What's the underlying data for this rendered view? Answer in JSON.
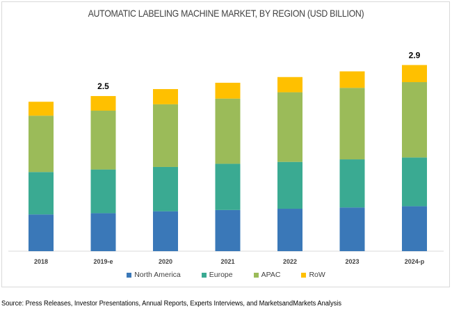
{
  "chart_data": {
    "type": "bar",
    "stacked": true,
    "title": "AUTOMATIC LABELING MACHINE MARKET, BY REGION (USD BILLION)",
    "xlabel": "",
    "ylabel": "",
    "ylim": [
      0,
      3.2
    ],
    "grid": false,
    "y_axis_visible": false,
    "legend_position": "bottom",
    "categories": [
      "2018",
      "2019-e",
      "2020",
      "2021",
      "2022",
      "2023",
      "2024-p"
    ],
    "series": [
      {
        "name": "North America",
        "color": "#3a78b8",
        "values": [
          0.58,
          0.6,
          0.63,
          0.65,
          0.67,
          0.69,
          0.71
        ]
      },
      {
        "name": "Europe",
        "color": "#3aaa92",
        "values": [
          0.67,
          0.69,
          0.7,
          0.73,
          0.74,
          0.76,
          0.77
        ]
      },
      {
        "name": "APAC",
        "color": "#9bbb59",
        "values": [
          0.89,
          0.93,
          0.99,
          1.03,
          1.1,
          1.13,
          1.19
        ]
      },
      {
        "name": "RoW",
        "color": "#ffc000",
        "values": [
          0.22,
          0.23,
          0.24,
          0.25,
          0.24,
          0.26,
          0.27
        ]
      }
    ],
    "annotations": [
      {
        "category": "2019-e",
        "text": "2.5"
      },
      {
        "category": "2024-p",
        "text": "2.9"
      }
    ]
  },
  "source_note": "Source: Press Releases, Investor Presentations, Annual Reports, Experts Interviews, and MarketsandMarkets Analysis"
}
